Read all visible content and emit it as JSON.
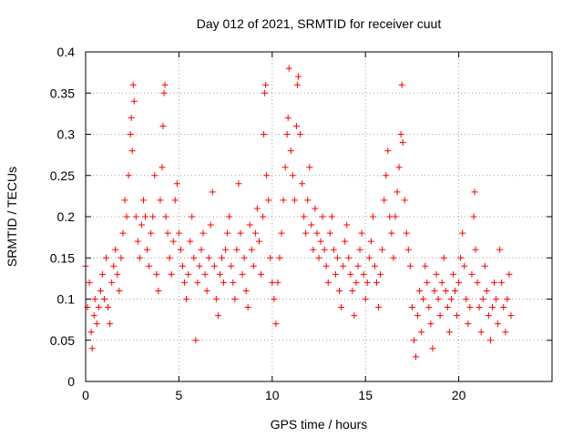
{
  "chart_data": {
    "type": "scatter",
    "title": "Day 012 of 2021, SRMTID for receiver cuut",
    "xlabel": "GPS time / hours",
    "ylabel": "SRMTID / TECUs",
    "xlim": [
      0,
      25
    ],
    "ylim": [
      0,
      0.4
    ],
    "x_ticks": [
      0,
      5,
      10,
      15,
      20
    ],
    "x_tick_labels": [
      "0",
      "5",
      "10",
      "15",
      "20"
    ],
    "y_ticks": [
      0,
      0.05,
      0.1,
      0.15,
      0.2,
      0.25,
      0.3,
      0.35,
      0.4
    ],
    "y_tick_labels": [
      "0",
      "0.05",
      "0.1",
      "0.15",
      "0.2",
      "0.25",
      "0.3",
      "0.35",
      "0.4"
    ],
    "grid": true,
    "marker": "plus",
    "color": "#ff0000",
    "series": [
      {
        "name": "SRMTID",
        "points": [
          [
            0.0,
            0.14
          ],
          [
            0.1,
            0.09
          ],
          [
            0.2,
            0.12
          ],
          [
            0.3,
            0.06
          ],
          [
            0.35,
            0.04
          ],
          [
            0.45,
            0.08
          ],
          [
            0.5,
            0.1
          ],
          [
            0.6,
            0.07
          ],
          [
            0.7,
            0.09
          ],
          [
            0.8,
            0.11
          ],
          [
            0.9,
            0.13
          ],
          [
            1.0,
            0.1
          ],
          [
            1.1,
            0.15
          ],
          [
            1.2,
            0.09
          ],
          [
            1.3,
            0.07
          ],
          [
            1.4,
            0.12
          ],
          [
            1.5,
            0.14
          ],
          [
            1.6,
            0.16
          ],
          [
            1.7,
            0.13
          ],
          [
            1.8,
            0.11
          ],
          [
            1.9,
            0.15
          ],
          [
            2.0,
            0.18
          ],
          [
            2.1,
            0.22
          ],
          [
            2.2,
            0.2
          ],
          [
            2.3,
            0.25
          ],
          [
            2.4,
            0.3
          ],
          [
            2.45,
            0.32
          ],
          [
            2.5,
            0.28
          ],
          [
            2.55,
            0.36
          ],
          [
            2.6,
            0.34
          ],
          [
            2.7,
            0.2
          ],
          [
            2.8,
            0.17
          ],
          [
            2.9,
            0.15
          ],
          [
            3.0,
            0.19
          ],
          [
            3.1,
            0.22
          ],
          [
            3.2,
            0.2
          ],
          [
            3.3,
            0.16
          ],
          [
            3.4,
            0.14
          ],
          [
            3.5,
            0.18
          ],
          [
            3.6,
            0.2
          ],
          [
            3.7,
            0.25
          ],
          [
            3.8,
            0.13
          ],
          [
            3.9,
            0.11
          ],
          [
            4.0,
            0.22
          ],
          [
            4.1,
            0.26
          ],
          [
            4.15,
            0.31
          ],
          [
            4.2,
            0.35
          ],
          [
            4.25,
            0.36
          ],
          [
            4.3,
            0.2
          ],
          [
            4.4,
            0.18
          ],
          [
            4.5,
            0.15
          ],
          [
            4.6,
            0.13
          ],
          [
            4.7,
            0.17
          ],
          [
            4.8,
            0.22
          ],
          [
            4.9,
            0.24
          ],
          [
            5.0,
            0.18
          ],
          [
            5.1,
            0.16
          ],
          [
            5.2,
            0.14
          ],
          [
            5.3,
            0.12
          ],
          [
            5.4,
            0.1
          ],
          [
            5.5,
            0.13
          ],
          [
            5.6,
            0.17
          ],
          [
            5.7,
            0.2
          ],
          [
            5.8,
            0.15
          ],
          [
            5.9,
            0.05
          ],
          [
            6.0,
            0.12
          ],
          [
            6.1,
            0.14
          ],
          [
            6.2,
            0.16
          ],
          [
            6.3,
            0.18
          ],
          [
            6.4,
            0.13
          ],
          [
            6.5,
            0.11
          ],
          [
            6.6,
            0.15
          ],
          [
            6.7,
            0.19
          ],
          [
            6.8,
            0.23
          ],
          [
            6.9,
            0.14
          ],
          [
            7.0,
            0.1
          ],
          [
            7.1,
            0.08
          ],
          [
            7.2,
            0.13
          ],
          [
            7.3,
            0.15
          ],
          [
            7.4,
            0.12
          ],
          [
            7.5,
            0.16
          ],
          [
            7.6,
            0.18
          ],
          [
            7.7,
            0.2
          ],
          [
            7.8,
            0.14
          ],
          [
            7.9,
            0.12
          ],
          [
            8.0,
            0.1
          ],
          [
            8.1,
            0.16
          ],
          [
            8.2,
            0.24
          ],
          [
            8.3,
            0.18
          ],
          [
            8.4,
            0.13
          ],
          [
            8.5,
            0.15
          ],
          [
            8.6,
            0.11
          ],
          [
            8.7,
            0.09
          ],
          [
            8.8,
            0.19
          ],
          [
            8.9,
            0.16
          ],
          [
            9.0,
            0.14
          ],
          [
            9.1,
            0.18
          ],
          [
            9.2,
            0.21
          ],
          [
            9.3,
            0.17
          ],
          [
            9.4,
            0.13
          ],
          [
            9.5,
            0.2
          ],
          [
            9.55,
            0.3
          ],
          [
            9.6,
            0.35
          ],
          [
            9.65,
            0.36
          ],
          [
            9.7,
            0.25
          ],
          [
            9.8,
            0.22
          ],
          [
            9.9,
            0.15
          ],
          [
            10.0,
            0.12
          ],
          [
            10.1,
            0.1
          ],
          [
            10.2,
            0.07
          ],
          [
            10.3,
            0.12
          ],
          [
            10.4,
            0.15
          ],
          [
            10.5,
            0.18
          ],
          [
            10.6,
            0.22
          ],
          [
            10.7,
            0.26
          ],
          [
            10.8,
            0.3
          ],
          [
            10.85,
            0.32
          ],
          [
            10.9,
            0.38
          ],
          [
            11.0,
            0.28
          ],
          [
            11.1,
            0.25
          ],
          [
            11.2,
            0.22
          ],
          [
            11.3,
            0.31
          ],
          [
            11.35,
            0.36
          ],
          [
            11.4,
            0.37
          ],
          [
            11.5,
            0.3
          ],
          [
            11.6,
            0.24
          ],
          [
            11.7,
            0.2
          ],
          [
            11.8,
            0.18
          ],
          [
            11.9,
            0.22
          ],
          [
            12.0,
            0.26
          ],
          [
            12.1,
            0.19
          ],
          [
            12.2,
            0.16
          ],
          [
            12.3,
            0.21
          ],
          [
            12.4,
            0.18
          ],
          [
            12.5,
            0.15
          ],
          [
            12.6,
            0.17
          ],
          [
            12.7,
            0.2
          ],
          [
            12.8,
            0.16
          ],
          [
            12.9,
            0.14
          ],
          [
            13.0,
            0.12
          ],
          [
            13.1,
            0.18
          ],
          [
            13.2,
            0.2
          ],
          [
            13.3,
            0.16
          ],
          [
            13.4,
            0.13
          ],
          [
            13.5,
            0.15
          ],
          [
            13.6,
            0.11
          ],
          [
            13.7,
            0.09
          ],
          [
            13.8,
            0.14
          ],
          [
            13.9,
            0.17
          ],
          [
            14.0,
            0.19
          ],
          [
            14.1,
            0.15
          ],
          [
            14.2,
            0.13
          ],
          [
            14.3,
            0.11
          ],
          [
            14.4,
            0.08
          ],
          [
            14.5,
            0.12
          ],
          [
            14.6,
            0.14
          ],
          [
            14.7,
            0.16
          ],
          [
            14.8,
            0.18
          ],
          [
            14.9,
            0.13
          ],
          [
            15.0,
            0.1
          ],
          [
            15.1,
            0.12
          ],
          [
            15.2,
            0.15
          ],
          [
            15.3,
            0.17
          ],
          [
            15.4,
            0.2
          ],
          [
            15.5,
            0.14
          ],
          [
            15.6,
            0.12
          ],
          [
            15.7,
            0.09
          ],
          [
            15.8,
            0.13
          ],
          [
            15.9,
            0.16
          ],
          [
            16.0,
            0.22
          ],
          [
            16.1,
            0.25
          ],
          [
            16.2,
            0.28
          ],
          [
            16.3,
            0.2
          ],
          [
            16.4,
            0.18
          ],
          [
            16.5,
            0.15
          ],
          [
            16.6,
            0.2
          ],
          [
            16.7,
            0.23
          ],
          [
            16.8,
            0.26
          ],
          [
            16.9,
            0.3
          ],
          [
            16.95,
            0.36
          ],
          [
            17.0,
            0.29
          ],
          [
            17.1,
            0.22
          ],
          [
            17.2,
            0.18
          ],
          [
            17.3,
            0.16
          ],
          [
            17.4,
            0.14
          ],
          [
            17.5,
            0.09
          ],
          [
            17.6,
            0.05
          ],
          [
            17.7,
            0.03
          ],
          [
            17.8,
            0.08
          ],
          [
            17.9,
            0.11
          ],
          [
            18.0,
            0.06
          ],
          [
            18.1,
            0.1
          ],
          [
            18.2,
            0.14
          ],
          [
            18.3,
            0.12
          ],
          [
            18.4,
            0.09
          ],
          [
            18.5,
            0.07
          ],
          [
            18.6,
            0.04
          ],
          [
            18.7,
            0.11
          ],
          [
            18.8,
            0.13
          ],
          [
            18.9,
            0.1
          ],
          [
            19.0,
            0.08
          ],
          [
            19.1,
            0.12
          ],
          [
            19.2,
            0.15
          ],
          [
            19.3,
            0.11
          ],
          [
            19.4,
            0.09
          ],
          [
            19.5,
            0.06
          ],
          [
            19.6,
            0.1
          ],
          [
            19.7,
            0.13
          ],
          [
            19.8,
            0.11
          ],
          [
            19.9,
            0.08
          ],
          [
            20.0,
            0.12
          ],
          [
            20.1,
            0.15
          ],
          [
            20.2,
            0.18
          ],
          [
            20.3,
            0.14
          ],
          [
            20.4,
            0.1
          ],
          [
            20.5,
            0.07
          ],
          [
            20.6,
            0.09
          ],
          [
            20.7,
            0.13
          ],
          [
            20.8,
            0.2
          ],
          [
            20.85,
            0.23
          ],
          [
            20.9,
            0.16
          ],
          [
            21.0,
            0.12
          ],
          [
            21.1,
            0.09
          ],
          [
            21.2,
            0.06
          ],
          [
            21.3,
            0.1
          ],
          [
            21.4,
            0.14
          ],
          [
            21.5,
            0.11
          ],
          [
            21.6,
            0.08
          ],
          [
            21.7,
            0.05
          ],
          [
            21.8,
            0.09
          ],
          [
            21.9,
            0.12
          ],
          [
            22.0,
            0.1
          ],
          [
            22.1,
            0.07
          ],
          [
            22.2,
            0.16
          ],
          [
            22.3,
            0.12
          ],
          [
            22.4,
            0.09
          ],
          [
            22.5,
            0.06
          ],
          [
            22.6,
            0.1
          ],
          [
            22.7,
            0.13
          ],
          [
            22.8,
            0.08
          ]
        ]
      }
    ]
  }
}
